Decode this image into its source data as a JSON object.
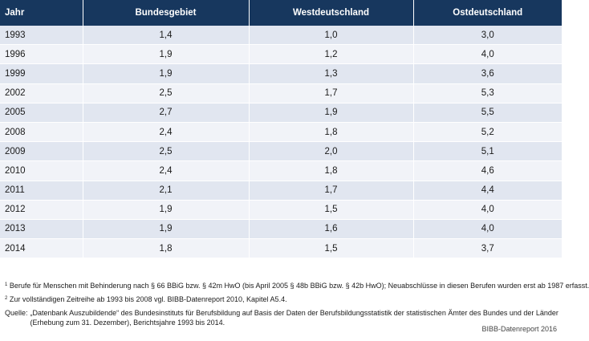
{
  "table": {
    "headers": [
      "Jahr",
      "Bundesgebiet",
      "Westdeutschland",
      "Ostdeutschland"
    ],
    "rows": [
      [
        "1993",
        "1,4",
        "1,0",
        "3,0"
      ],
      [
        "1996",
        "1,9",
        "1,2",
        "4,0"
      ],
      [
        "1999",
        "1,9",
        "1,3",
        "3,6"
      ],
      [
        "2002",
        "2,5",
        "1,7",
        "5,3"
      ],
      [
        "2005",
        "2,7",
        "1,9",
        "5,5"
      ],
      [
        "2008",
        "2,4",
        "1,8",
        "5,2"
      ],
      [
        "2009",
        "2,5",
        "2,0",
        "5,1"
      ],
      [
        "2010",
        "2,4",
        "1,8",
        "4,6"
      ],
      [
        "2011",
        "2,1",
        "1,7",
        "4,4"
      ],
      [
        "2012",
        "1,9",
        "1,5",
        "4,0"
      ],
      [
        "2013",
        "1,9",
        "1,6",
        "4,0"
      ],
      [
        "2014",
        "1,8",
        "1,5",
        "3,7"
      ]
    ]
  },
  "footnotes": [
    {
      "mark": "1",
      "text": "Berufe für Menschen mit Behinderung nach § 66 BBiG bzw. § 42m HwO (bis April 2005 § 48b BBiG bzw. § 42b HwO); Neuabschlüsse in diesen Berufen wurden erst ab 1987 erfasst."
    },
    {
      "mark": "2",
      "text": "Zur vollständigen Zeitreihe ab 1993 bis 2008 vgl. BIBB-Datenreport 2010, Kapitel A5.4."
    }
  ],
  "source": {
    "label": "Quelle:",
    "text": "„Datenbank Auszubildende“ des Bundesinstituts für Berufsbildung auf Basis der Daten der Berufsbildungsstatistik der statistischen Ämter des Bundes und der Länder (Erhebung zum 31. Dezember), Berichtsjahre 1993 bis 2014."
  },
  "credit": "BIBB-Datenreport 2016",
  "colors": {
    "header_bg": "#17375e",
    "row_odd": "#e1e6f0",
    "row_even": "#f1f3f8"
  }
}
